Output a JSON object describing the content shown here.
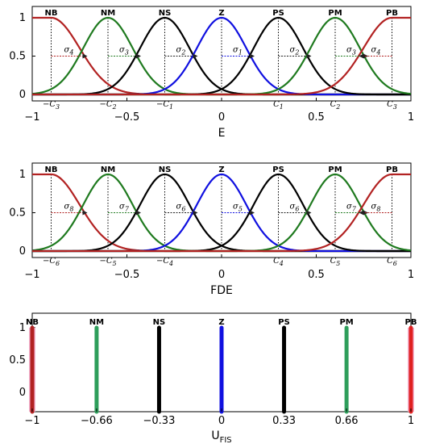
{
  "chart_data": [
    {
      "type": "line",
      "xlabel": "E",
      "ylabel": "",
      "xlim": [
        -1,
        1
      ],
      "ylim": [
        0,
        1
      ],
      "xticks": [
        "-1",
        "-0.5",
        "0",
        "0.5",
        "1"
      ],
      "yticks": [
        "0",
        "0.5",
        "1"
      ],
      "series": [
        {
          "name": "NB",
          "shape": "z",
          "center": -0.9,
          "sigma": 0.15,
          "color": "#b22222"
        },
        {
          "name": "NM",
          "shape": "gauss",
          "center": -0.6,
          "sigma": 0.13,
          "color": "#1f7a1f"
        },
        {
          "name": "NS",
          "shape": "gauss",
          "center": -0.3,
          "sigma": 0.13,
          "color": "#000000"
        },
        {
          "name": "Z",
          "shape": "gauss",
          "center": 0,
          "sigma": 0.13,
          "color": "#1010e0"
        },
        {
          "name": "PS",
          "shape": "gauss",
          "center": 0.3,
          "sigma": 0.13,
          "color": "#000000"
        },
        {
          "name": "PM",
          "shape": "gauss",
          "center": 0.6,
          "sigma": 0.13,
          "color": "#1f7a1f"
        },
        {
          "name": "PB",
          "shape": "s",
          "center": 0.9,
          "sigma": 0.15,
          "color": "#b22222"
        }
      ],
      "center_labels": [
        "-c3",
        "-c2",
        "-c1",
        "c1",
        "c2",
        "c3"
      ],
      "center_positions": [
        -0.9,
        -0.6,
        -0.3,
        0.3,
        0.6,
        0.9
      ],
      "sigma_labels": [
        "σ4",
        "σ3",
        "σ2",
        "σ1",
        "σ2",
        "σ3",
        "σ4"
      ]
    },
    {
      "type": "line",
      "xlabel": "FDE",
      "ylabel": "",
      "xlim": [
        -1,
        1
      ],
      "ylim": [
        0,
        1
      ],
      "xticks": [
        "-1",
        "-0.5",
        "0",
        "0.5",
        "1"
      ],
      "yticks": [
        "0",
        "0.5",
        "1"
      ],
      "series": [
        {
          "name": "NB",
          "shape": "z",
          "center": -0.9,
          "sigma": 0.15,
          "color": "#b22222"
        },
        {
          "name": "NM",
          "shape": "gauss",
          "center": -0.6,
          "sigma": 0.13,
          "color": "#1f7a1f"
        },
        {
          "name": "NS",
          "shape": "gauss",
          "center": -0.3,
          "sigma": 0.13,
          "color": "#000000"
        },
        {
          "name": "Z",
          "shape": "gauss",
          "center": 0,
          "sigma": 0.13,
          "color": "#1010e0"
        },
        {
          "name": "PS",
          "shape": "gauss",
          "center": 0.3,
          "sigma": 0.13,
          "color": "#000000"
        },
        {
          "name": "PM",
          "shape": "gauss",
          "center": 0.6,
          "sigma": 0.13,
          "color": "#1f7a1f"
        },
        {
          "name": "PB",
          "shape": "s",
          "center": 0.9,
          "sigma": 0.15,
          "color": "#b22222"
        }
      ],
      "center_labels": [
        "-c6",
        "-c5",
        "-c4",
        "c4",
        "c5",
        "c6"
      ],
      "center_positions": [
        -0.9,
        -0.6,
        -0.3,
        0.3,
        0.6,
        0.9
      ],
      "sigma_labels": [
        "σ8",
        "σ7",
        "σ6",
        "σ5",
        "σ6",
        "σ7",
        "σ8"
      ]
    },
    {
      "type": "bar",
      "xlabel": "U",
      "xlabel_sub": "FIS",
      "ylabel": "",
      "xlim": [
        -1,
        1
      ],
      "ylim": [
        -0.3,
        1
      ],
      "xticks": [
        "-1",
        "-0.66",
        "-0.33",
        "0",
        "0.33",
        "0.66",
        "1"
      ],
      "yticks": [
        "0",
        "0.5",
        "1"
      ],
      "x": [
        -1,
        -0.66,
        -0.33,
        0,
        0.33,
        0.66,
        1
      ],
      "values": [
        1,
        1,
        1,
        1,
        1,
        1,
        1
      ],
      "names": [
        "NB",
        "NM",
        "NS",
        "Z",
        "PS",
        "PM",
        "PB"
      ],
      "colors": [
        "#b22222",
        "#2e9e5b",
        "#000000",
        "#1010e0",
        "#000000",
        "#2e9e5b",
        "#e02020"
      ]
    }
  ]
}
